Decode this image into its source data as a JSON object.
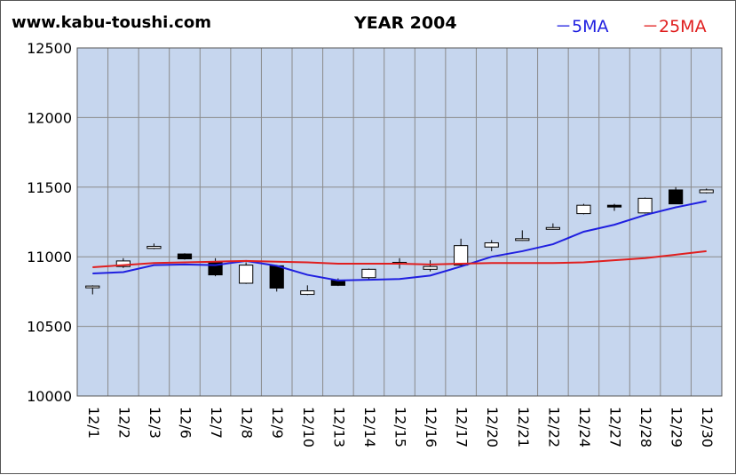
{
  "header": {
    "site": "www.kabu-toushi.com",
    "title": "YEAR 2004",
    "legend_5ma": "－5MA",
    "legend_25ma": "－25MA"
  },
  "colors": {
    "plot_bg": "#c6d6ee",
    "grid": "#8a8a8a",
    "ma5": "#1f1fe0",
    "ma25": "#e01f1f",
    "candle_up": "#ffffff",
    "candle_down": "#000000"
  },
  "chart_data": {
    "type": "candlestick",
    "title": "YEAR 2004",
    "ylim": [
      10000,
      12500
    ],
    "yticks": [
      10000,
      10500,
      11000,
      11500,
      12000,
      12500
    ],
    "grid": true,
    "legend": "top-right",
    "categories": [
      "12/1",
      "12/2",
      "12/3",
      "12/6",
      "12/7",
      "12/8",
      "12/9",
      "12/10",
      "12/13",
      "12/14",
      "12/15",
      "12/16",
      "12/17",
      "12/20",
      "12/21",
      "12/22",
      "12/24",
      "12/27",
      "12/28",
      "12/29",
      "12/30"
    ],
    "ohlc": [
      [
        10785,
        10795,
        10730,
        10790
      ],
      [
        10930,
        10990,
        10920,
        10970
      ],
      [
        11060,
        11095,
        11055,
        11075
      ],
      [
        11020,
        11025,
        10980,
        10985
      ],
      [
        10965,
        10990,
        10860,
        10870
      ],
      [
        10810,
        10960,
        10805,
        10940
      ],
      [
        10935,
        10940,
        10750,
        10775
      ],
      [
        10730,
        10795,
        10725,
        10755
      ],
      [
        10830,
        10845,
        10790,
        10795
      ],
      [
        10850,
        10915,
        10835,
        10910
      ],
      [
        10950,
        10990,
        10915,
        10960
      ],
      [
        10910,
        10975,
        10895,
        10930
      ],
      [
        10940,
        11130,
        10935,
        11080
      ],
      [
        11070,
        11120,
        11040,
        11100
      ],
      [
        11120,
        11190,
        11115,
        11130
      ],
      [
        11200,
        11240,
        11195,
        11210
      ],
      [
        11310,
        11380,
        11305,
        11370
      ],
      [
        11370,
        11380,
        11330,
        11360
      ],
      [
        11315,
        11425,
        11310,
        11420
      ],
      [
        11480,
        11500,
        11380,
        11380
      ],
      [
        11460,
        11490,
        11455,
        11480
      ]
    ],
    "series": [
      {
        "name": "5MA",
        "values": [
          10880,
          10890,
          10940,
          10945,
          10940,
          10970,
          10935,
          10870,
          10830,
          10835,
          10840,
          10865,
          10930,
          11000,
          11040,
          11090,
          11180,
          11230,
          11300,
          11355,
          11400
        ]
      },
      {
        "name": "25MA",
        "values": [
          10925,
          10940,
          10955,
          10960,
          10965,
          10970,
          10965,
          10960,
          10950,
          10950,
          10950,
          10945,
          10950,
          10955,
          10955,
          10955,
          10960,
          10975,
          10990,
          11015,
          11040
        ]
      }
    ]
  }
}
